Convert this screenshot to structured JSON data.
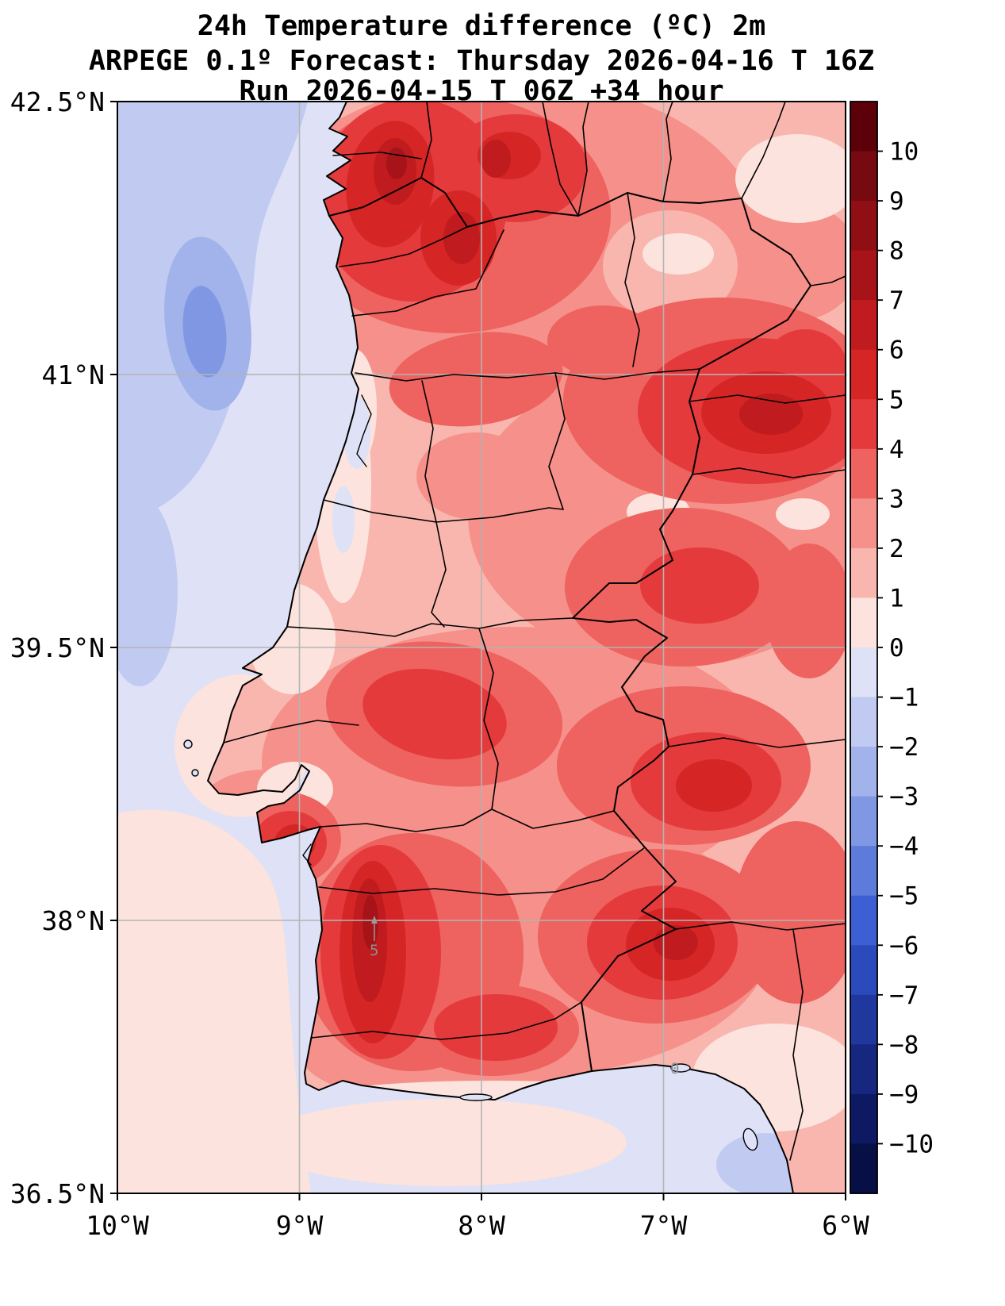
{
  "title": {
    "line1": "24h Temperature difference (ºC) 2m",
    "line2": "ARPEGE 0.1º Forecast: Thursday 2026-04-16 T 16Z",
    "line3": "Run 2026-04-15 T 06Z +34 hour"
  },
  "axes": {
    "lat_ticks": [
      "42.5°N",
      "41°N",
      "39.5°N",
      "38°N",
      "36.5°N"
    ],
    "lon_ticks": [
      "10°W",
      "9°W",
      "8°W",
      "7°W",
      "6°W"
    ]
  },
  "colorbar": {
    "tick_labels": [
      "10",
      "9",
      "8",
      "7",
      "6",
      "5",
      "4",
      "3",
      "2",
      "1",
      "0",
      "−1",
      "−2",
      "−3",
      "−4",
      "−5",
      "−6",
      "−7",
      "−8",
      "−9",
      "−10"
    ],
    "segment_colors": [
      "#5c0009",
      "#770a10",
      "#8f0f15",
      "#a61419",
      "#c01b1e",
      "#d52525",
      "#e43a3c",
      "#ee625f",
      "#f5908a",
      "#f9b6ae",
      "#fce3dd",
      "#dfe1f6",
      "#c1caf1",
      "#a2b2ea",
      "#8098e3",
      "#5d7bdb",
      "#3c60d3",
      "#2b4abc",
      "#20389e",
      "#162780",
      "#0d1a63",
      "#071046"
    ]
  },
  "palette": {
    "p10": "#5c0009",
    "p9": "#770a10",
    "p8": "#8f0f15",
    "p7": "#a61419",
    "p6": "#c01b1e",
    "p5": "#d52525",
    "p4": "#e43a3c",
    "p3": "#ee625f",
    "p2": "#f5908a",
    "p1": "#f9b6ae",
    "p0": "#fce3dd",
    "m1": "#dfe1f6",
    "m2": "#c1caf1",
    "m3": "#a2b2ea",
    "m4": "#8098e3",
    "m5": "#5d7bdb",
    "m6": "#3c60d3",
    "m7": "#2b4abc",
    "m8": "#20389e",
    "m9": "#162780",
    "m10": "#0d1a63",
    "m11": "#071046"
  },
  "colors": {
    "grid": "#b4b4b4",
    "boundaries": "#000000",
    "background": "#ffffff"
  },
  "annotations": [
    {
      "text": "5"
    },
    {
      "text": "0"
    }
  ],
  "chart_data": {
    "type": "heatmap",
    "subtype": "filled contour weather map (matplotlib-style)",
    "title": "24h Temperature difference (ºC) 2m",
    "model": "ARPEGE 0.1º",
    "valid_time": "Thursday 2026-04-16 T 16Z",
    "run_time": "2026-04-15 T 06Z",
    "lead_hours": 34,
    "variable": "24h temperature difference at 2 m",
    "units": "°C",
    "x_axis": {
      "label": "longitude",
      "ticks": [
        "10°W",
        "9°W",
        "8°W",
        "7°W",
        "6°W"
      ],
      "range_deg_west": [
        10,
        6
      ]
    },
    "y_axis": {
      "label": "latitude",
      "ticks": [
        "42.5°N",
        "41°N",
        "39.5°N",
        "38°N",
        "36.5°N"
      ],
      "range_deg_north": [
        36.5,
        42.5
      ]
    },
    "contour_levels": [
      -10,
      -9,
      -8,
      -7,
      -6,
      -5,
      -4,
      -3,
      -2,
      -1,
      0,
      1,
      2,
      3,
      4,
      5,
      6,
      7,
      8,
      9,
      10
    ],
    "colorbar_position": "right",
    "grid": true,
    "geography": "Mainland Portugal and western Spain with district/province boundaries, Atlantic Ocean to the west, Gulf of Cádiz to the south-east",
    "regions": [
      {
        "area": "Atlantic Ocean off NW coast (west of 9.3°W, north of 40°N)",
        "value_range_c": "-2 to -1"
      },
      {
        "area": "Atlantic patch near 41.2°N 9.6°W",
        "value_range_c": "-4 to -3"
      },
      {
        "area": "Coastal strip Aveiro–Figueira da Foz",
        "value_range_c": "-1 to +1"
      },
      {
        "area": "NW Portugal (Minho / Porto inland)",
        "value_range_c": "+4 to +8"
      },
      {
        "area": "Top-right Spain near 6.2°W 42.1°N",
        "value_range_c": "0 to +2"
      },
      {
        "area": "West-central Spain (Salamanca sector, ~6.5°W 41°N)",
        "value_range_c": "+4 to +7"
      },
      {
        "area": "Central interior Portugal",
        "value_range_c": "+1 to +4"
      },
      {
        "area": "Setúbal peninsula south of Lisbon",
        "value_range_c": "+4 to +6"
      },
      {
        "area": "Inland Alentejo / Beja district (vertical dark core near 8.1°W)",
        "value_range_c": "+5 to +8"
      },
      {
        "area": "Badajoz area Spain (~6.3°W 38.1°N)",
        "value_range_c": "+4 to +7"
      },
      {
        "area": "Algarve south coast strip",
        "value_range_c": "0 to +2"
      },
      {
        "area": "Gulf of Cádiz sea",
        "value_range_c": "-2 to 0"
      }
    ]
  }
}
